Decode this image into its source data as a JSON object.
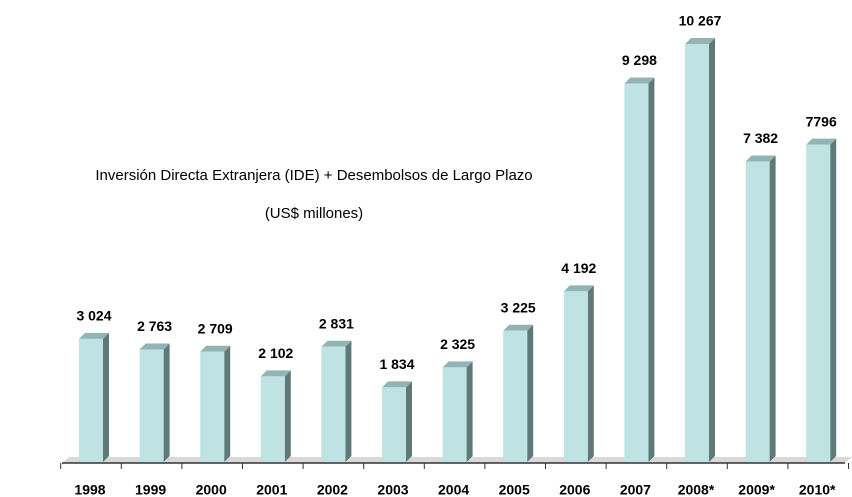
{
  "chart_data": {
    "type": "bar",
    "title": "Inversión Directa Extranjera (IDE) + Desembolsos de Largo Plazo",
    "subtitle": "(US$ millones)",
    "categories": [
      "1998",
      "1999",
      "2000",
      "2001",
      "2002",
      "2003",
      "2004",
      "2005",
      "2006",
      "2007",
      "2008*",
      "2009*",
      "2010*"
    ],
    "values": [
      3024,
      2763,
      2709,
      2102,
      2831,
      1834,
      2325,
      3225,
      4192,
      9298,
      10267,
      7382,
      7796
    ],
    "value_labels": [
      "3 024",
      "2 763",
      "2 709",
      "2 102",
      "2 831",
      "1 834",
      "2 325",
      "3 225",
      "4 192",
      "9 298",
      "10 267",
      "7 382",
      "7796"
    ],
    "color": "#bfe3e3"
  }
}
